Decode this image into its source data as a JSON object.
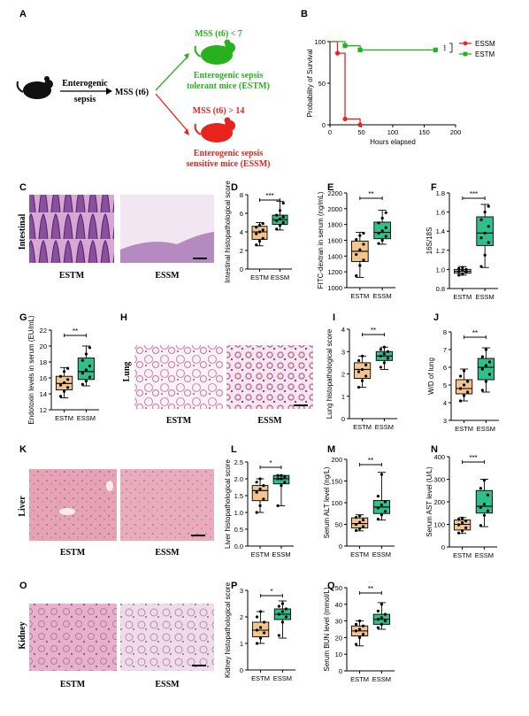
{
  "colors": {
    "orange": "#f4c48e",
    "green": "#2ebf8a",
    "essm_red": "#e8231e",
    "estm_green": "#27b11e"
  },
  "panelA": {
    "letter": "A",
    "arrow_label_1": "Enterogenic",
    "arrow_label_2": "sepsis",
    "mss_label": "MSS (t6)",
    "top_condition": "MSS (t6) < 7",
    "top_name_1": "Enterogenic sepsis",
    "top_name_2": "tolerant mice (ESTM)",
    "bottom_condition": "MSS (t6) > 14",
    "bottom_name_1": "Enterogenic sepsis",
    "bottom_name_2": "sensitive mice (ESSM)"
  },
  "images": {
    "C": {
      "letter": "C",
      "tissue": "Intestinal",
      "left": "ESTM",
      "right": "ESSM"
    },
    "H": {
      "letter": "H",
      "tissue": "Lung",
      "left": "ESTM",
      "right": "ESSM"
    },
    "K": {
      "letter": "K",
      "tissue": "Liver",
      "left": "ESTM",
      "right": "ESSM"
    },
    "O": {
      "letter": "O",
      "tissue": "Kidney",
      "left": "ESTM",
      "right": "ESSM"
    }
  },
  "chart_data": [
    {
      "letter": "B",
      "type": "line",
      "xlabel": "Hours elapsed",
      "ylabel": "Probability of Survival",
      "xlim": [
        0,
        200
      ],
      "ylim": [
        0,
        100
      ],
      "xticks": [
        "0",
        "50",
        "100",
        "150",
        "200"
      ],
      "yticks": [
        "0",
        "50",
        "100"
      ],
      "significance": "***",
      "legend_position": "top-right",
      "series": [
        {
          "name": "ESSM",
          "color": "#e8231e",
          "x": [
            0,
            12,
            12,
            24,
            24,
            48,
            48
          ],
          "y": [
            100,
            100,
            86,
            86,
            7,
            7,
            0
          ],
          "markers_x": [
            12,
            24,
            48
          ],
          "markers_y": [
            86,
            7,
            0
          ]
        },
        {
          "name": "ESTM",
          "color": "#27b11e",
          "x": [
            0,
            24,
            24,
            48,
            48,
            168
          ],
          "y": [
            100,
            100,
            95,
            95,
            90,
            90
          ],
          "markers_x": [
            24,
            48,
            168
          ],
          "markers_y": [
            95,
            90,
            90
          ]
        }
      ]
    },
    {
      "letter": "D",
      "type": "box",
      "ylabel": "Intestinal histopathological score",
      "ylim": [
        0,
        8
      ],
      "yticks": [
        "0",
        "2",
        "4",
        "6",
        "8"
      ],
      "categories": [
        "ESTM",
        "ESSM"
      ],
      "significance": "***",
      "boxes": [
        {
          "min": 2.5,
          "q1": 3.2,
          "median": 4.0,
          "q3": 4.6,
          "max": 5.0,
          "points": [
            2.6,
            3.0,
            3.3,
            3.8,
            4.0,
            4.2,
            4.5,
            4.7,
            4.9
          ]
        },
        {
          "min": 4.2,
          "q1": 4.8,
          "median": 5.3,
          "q3": 5.8,
          "max": 7.3,
          "points": [
            4.3,
            4.7,
            5.0,
            5.2,
            5.4,
            5.6,
            5.8,
            6.3,
            7.1
          ]
        }
      ]
    },
    {
      "letter": "E",
      "type": "box",
      "ylabel": "FITC-dextran in serum (ng/mL)",
      "ylim": [
        1000,
        2200
      ],
      "yticks": [
        "1000",
        "1200",
        "1400",
        "1600",
        "1800",
        "2000",
        "2200"
      ],
      "categories": [
        "ESTM",
        "ESSM"
      ],
      "significance": "**",
      "boxes": [
        {
          "min": 1130,
          "q1": 1330,
          "median": 1460,
          "q3": 1590,
          "max": 1700,
          "points": [
            1150,
            1280,
            1350,
            1420,
            1480,
            1550,
            1610,
            1660,
            1690
          ]
        },
        {
          "min": 1550,
          "q1": 1620,
          "median": 1700,
          "q3": 1830,
          "max": 1980,
          "points": [
            1560,
            1600,
            1650,
            1690,
            1720,
            1760,
            1820,
            1880,
            1950
          ]
        }
      ]
    },
    {
      "letter": "F",
      "type": "box",
      "ylabel": "16S/18S",
      "ylim": [
        0.8,
        1.8
      ],
      "yticks": [
        "0.8",
        "1.0",
        "1.2",
        "1.4",
        "1.6",
        "1.8"
      ],
      "categories": [
        "ESTM",
        "ESSM"
      ],
      "significance": "***",
      "boxes": [
        {
          "min": 0.94,
          "q1": 0.96,
          "median": 0.98,
          "q3": 1.0,
          "max": 1.03,
          "points": [
            0.94,
            0.95,
            0.97,
            0.98,
            0.99,
            1.0,
            1.01,
            1.02
          ]
        },
        {
          "min": 1.02,
          "q1": 1.25,
          "median": 1.38,
          "q3": 1.55,
          "max": 1.68,
          "points": [
            1.03,
            1.15,
            1.28,
            1.33,
            1.38,
            1.45,
            1.52,
            1.6,
            1.66
          ]
        }
      ]
    },
    {
      "letter": "G",
      "type": "box",
      "ylabel": "Endotoxin levels in serum (EU/mL)",
      "ylim": [
        12,
        22
      ],
      "yticks": [
        "12",
        "14",
        "16",
        "18",
        "20",
        "22"
      ],
      "categories": [
        "ESTM",
        "ESSM"
      ],
      "significance": "**",
      "boxes": [
        {
          "min": 13.5,
          "q1": 14.5,
          "median": 15.3,
          "q3": 16.2,
          "max": 17.3,
          "points": [
            13.7,
            14.3,
            14.8,
            15.1,
            15.4,
            15.8,
            16.2,
            16.8,
            17.2
          ]
        },
        {
          "min": 15.0,
          "q1": 15.8,
          "median": 16.8,
          "q3": 18.5,
          "max": 20.0,
          "points": [
            15.2,
            15.6,
            16.1,
            16.6,
            17.0,
            17.5,
            18.2,
            19.0,
            19.8
          ]
        }
      ]
    },
    {
      "letter": "I",
      "type": "box",
      "ylabel": "Lung histopathological score",
      "ylim": [
        0,
        4
      ],
      "yticks": [
        "0",
        "1",
        "2",
        "3",
        "4"
      ],
      "categories": [
        "ESTM",
        "ESSM"
      ],
      "significance": "**",
      "boxes": [
        {
          "min": 1.4,
          "q1": 1.8,
          "median": 2.2,
          "q3": 2.5,
          "max": 2.8,
          "points": [
            1.4,
            1.7,
            1.9,
            2.1,
            2.2,
            2.4,
            2.6,
            2.8
          ]
        },
        {
          "min": 2.2,
          "q1": 2.6,
          "median": 2.8,
          "q3": 3.0,
          "max": 3.2,
          "points": [
            2.3,
            2.5,
            2.7,
            2.8,
            2.9,
            3.0,
            3.1,
            3.2
          ]
        }
      ]
    },
    {
      "letter": "J",
      "type": "box",
      "ylabel": "W/D of lung",
      "ylim": [
        3,
        8
      ],
      "yticks": [
        "3",
        "4",
        "5",
        "6",
        "7",
        "8"
      ],
      "categories": [
        "ESTM",
        "ESSM"
      ],
      "significance": "**",
      "boxes": [
        {
          "min": 4.1,
          "q1": 4.5,
          "median": 4.8,
          "q3": 5.3,
          "max": 5.9,
          "points": [
            4.1,
            4.4,
            4.6,
            4.8,
            5.0,
            5.2,
            5.5,
            5.8
          ]
        },
        {
          "min": 4.6,
          "q1": 5.3,
          "median": 6.0,
          "q3": 6.5,
          "max": 7.1,
          "points": [
            4.7,
            5.2,
            5.6,
            5.9,
            6.1,
            6.3,
            6.6,
            7.0
          ]
        }
      ]
    },
    {
      "letter": "L",
      "type": "box",
      "ylabel": "Liver histopathological score",
      "ylim": [
        0,
        2.5
      ],
      "yticks": [
        "0.0",
        "0.5",
        "1.0",
        "1.5",
        "2.0",
        "2.5"
      ],
      "categories": [
        "ESTM",
        "ESSM"
      ],
      "significance": "*",
      "boxes": [
        {
          "min": 1.0,
          "q1": 1.35,
          "median": 1.65,
          "q3": 1.8,
          "max": 2.0,
          "points": [
            1.0,
            1.2,
            1.4,
            1.6,
            1.7,
            1.8,
            1.9,
            2.0
          ]
        },
        {
          "min": 1.2,
          "q1": 1.85,
          "median": 2.0,
          "q3": 2.1,
          "max": 2.1,
          "points": [
            1.2,
            1.8,
            1.9,
            2.0,
            2.0,
            2.05,
            2.1,
            2.1
          ]
        }
      ]
    },
    {
      "letter": "M",
      "type": "box",
      "ylabel": "Serum ALT level (ng/L)",
      "ylim": [
        0,
        200
      ],
      "yticks": [
        "0",
        "50",
        "100",
        "150",
        "200"
      ],
      "categories": [
        "ESTM",
        "ESSM"
      ],
      "significance": "**",
      "boxes": [
        {
          "min": 35,
          "q1": 42,
          "median": 52,
          "q3": 65,
          "max": 72,
          "points": [
            36,
            40,
            45,
            50,
            55,
            60,
            66,
            70
          ]
        },
        {
          "min": 60,
          "q1": 75,
          "median": 90,
          "q3": 105,
          "max": 170,
          "points": [
            62,
            72,
            80,
            88,
            95,
            102,
            115,
            165
          ]
        }
      ]
    },
    {
      "letter": "N",
      "type": "box",
      "ylabel": "Serum AST level (U/L)",
      "ylim": [
        0,
        400
      ],
      "yticks": [
        "0",
        "100",
        "200",
        "300",
        "400"
      ],
      "categories": [
        "ESTM",
        "ESSM"
      ],
      "significance": "***",
      "boxes": [
        {
          "min": 60,
          "q1": 75,
          "median": 100,
          "q3": 120,
          "max": 130,
          "points": [
            62,
            72,
            85,
            98,
            108,
            115,
            122,
            128
          ]
        },
        {
          "min": 90,
          "q1": 150,
          "median": 180,
          "q3": 250,
          "max": 300,
          "points": [
            95,
            140,
            160,
            175,
            190,
            230,
            260,
            295
          ]
        }
      ]
    },
    {
      "letter": "P",
      "type": "box",
      "ylabel": "Kidney histopathological score",
      "ylim": [
        0,
        3
      ],
      "yticks": [
        "0",
        "1",
        "2",
        "3"
      ],
      "categories": [
        "ESTM",
        "ESSM"
      ],
      "significance": "*",
      "boxes": [
        {
          "min": 1.0,
          "q1": 1.25,
          "median": 1.5,
          "q3": 1.8,
          "max": 2.2,
          "points": [
            1.0,
            1.2,
            1.4,
            1.5,
            1.6,
            1.8,
            2.0,
            2.2
          ]
        },
        {
          "min": 1.2,
          "q1": 1.9,
          "median": 2.1,
          "q3": 2.3,
          "max": 2.6,
          "points": [
            1.3,
            1.8,
            2.0,
            2.1,
            2.2,
            2.3,
            2.4,
            2.5
          ]
        }
      ]
    },
    {
      "letter": "Q",
      "type": "box",
      "ylabel": "Serum BUN level (mmol/L)",
      "ylim": [
        0,
        50
      ],
      "yticks": [
        "0",
        "10",
        "20",
        "30",
        "40",
        "50"
      ],
      "categories": [
        "ESTM",
        "ESSM"
      ],
      "significance": "**",
      "boxes": [
        {
          "min": 15,
          "q1": 21,
          "median": 24,
          "q3": 27,
          "max": 30,
          "points": [
            16,
            20,
            22,
            24,
            25,
            27,
            28,
            30
          ]
        },
        {
          "min": 25,
          "q1": 28,
          "median": 31,
          "q3": 34,
          "max": 41,
          "points": [
            26,
            28,
            30,
            31,
            32,
            34,
            36,
            40
          ]
        }
      ]
    }
  ]
}
